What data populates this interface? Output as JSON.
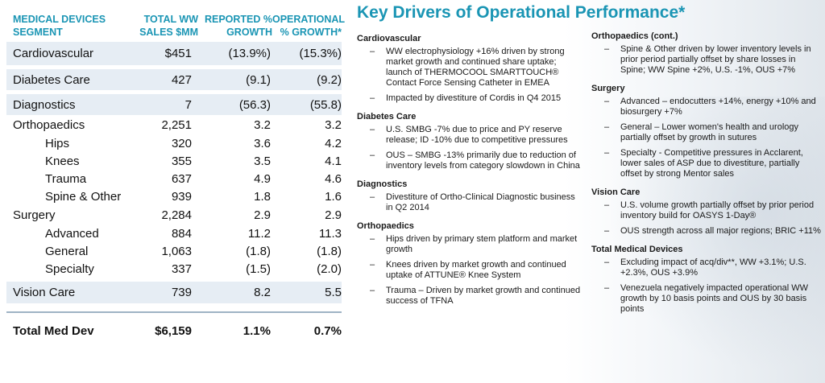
{
  "table": {
    "headers": {
      "segment": "MEDICAL DEVICES SEGMENT",
      "sales": "TOTAL WW SALES $MM",
      "reported": "REPORTED % GROWTH",
      "operational": "OPERATIONAL % GROWTH*"
    },
    "rows": [
      {
        "name": "Cardiovascular",
        "sales": "$451",
        "reported": "(13.9%)",
        "operational": "(15.3%)"
      },
      {
        "name": "Diabetes Care",
        "sales": "427",
        "reported": "(9.1)",
        "operational": "(9.2)"
      },
      {
        "name": "Diagnostics",
        "sales": "7",
        "reported": "(56.3)",
        "operational": "(55.8)"
      },
      {
        "name": "Orthopaedics",
        "sales": "2,251",
        "reported": "3.2",
        "operational": "3.2"
      },
      {
        "name": "Hips",
        "sales": "320",
        "reported": "3.6",
        "operational": "4.2"
      },
      {
        "name": "Knees",
        "sales": "355",
        "reported": "3.5",
        "operational": "4.1"
      },
      {
        "name": "Trauma",
        "sales": "637",
        "reported": "4.9",
        "operational": "4.6"
      },
      {
        "name": "Spine & Other",
        "sales": "939",
        "reported": "1.8",
        "operational": "1.6"
      },
      {
        "name": "Surgery",
        "sales": "2,284",
        "reported": "2.9",
        "operational": "2.9"
      },
      {
        "name": "Advanced",
        "sales": "884",
        "reported": "11.2",
        "operational": "11.3"
      },
      {
        "name": "General",
        "sales": "1,063",
        "reported": "(1.8)",
        "operational": "(1.8)"
      },
      {
        "name": "Specialty",
        "sales": "337",
        "reported": "(1.5)",
        "operational": "(2.0)"
      },
      {
        "name": "Vision Care",
        "sales": "739",
        "reported": "8.2",
        "operational": "5.5"
      }
    ],
    "total": {
      "name": "Total Med Dev",
      "sales": "$6,159",
      "reported": "1.1%",
      "operational": "0.7%"
    }
  },
  "title": "Key Drivers of Operational Performance*",
  "left_column": {
    "cardiovascular": {
      "heading": "Cardiovascular",
      "items": [
        "WW electrophysiology +16% driven by strong market growth and continued share uptake; launch of THERMOCOOL SMARTTOUCH® Contact Force Sensing Catheter in EMEA",
        "Impacted by divestiture of Cordis in Q4 2015"
      ]
    },
    "diabetes": {
      "heading": "Diabetes Care",
      "items": [
        "U.S. SMBG -7% due to price and PY reserve release; ID -10% due to competitive pressures",
        "OUS – SMBG -13% primarily due to reduction of inventory levels from category slowdown in China"
      ]
    },
    "diagnostics": {
      "heading": "Diagnostics",
      "items": [
        "Divestiture of Ortho-Clinical Diagnostic business in Q2 2014"
      ]
    },
    "orthopaedics": {
      "heading": "Orthopaedics",
      "items": [
        "Hips driven by primary stem platform and market growth",
        "Knees driven by market growth and continued uptake of ATTUNE® Knee System",
        "Trauma – Driven by market growth and continued success of TFNA"
      ]
    }
  },
  "right_column": {
    "ortho_cont": {
      "heading": "Orthopaedics (cont.)",
      "items": [
        "Spine & Other driven by lower inventory levels in prior period partially offset by share losses in Spine; WW Spine +2%, U.S. -1%, OUS +7%"
      ]
    },
    "surgery": {
      "heading": "Surgery",
      "items": [
        "Advanced – endocutters +14%, energy +10% and biosurgery +7%",
        "General – Lower women's health and urology partially offset by growth in sutures",
        "Specialty - Competitive pressures in Acclarent, lower sales of ASP due to divestiture, partially offset by strong Mentor sales"
      ]
    },
    "vision": {
      "heading": "Vision Care",
      "items": [
        "U.S. volume growth partially offset by prior period inventory build for OASYS 1-Day®",
        "OUS strength across all major regions; BRIC +11%"
      ]
    },
    "total": {
      "heading": "Total Medical Devices",
      "items": [
        "Excluding impact of acq/div**, WW +3.1%; U.S. +2.3%, OUS +3.9%",
        "Venezuela negatively impacted operational WW growth by 10 basis points and OUS by 30 basis points"
      ]
    }
  },
  "dash": "–",
  "colors": {
    "accent": "#1a95b4",
    "band": "#e6edf4"
  }
}
